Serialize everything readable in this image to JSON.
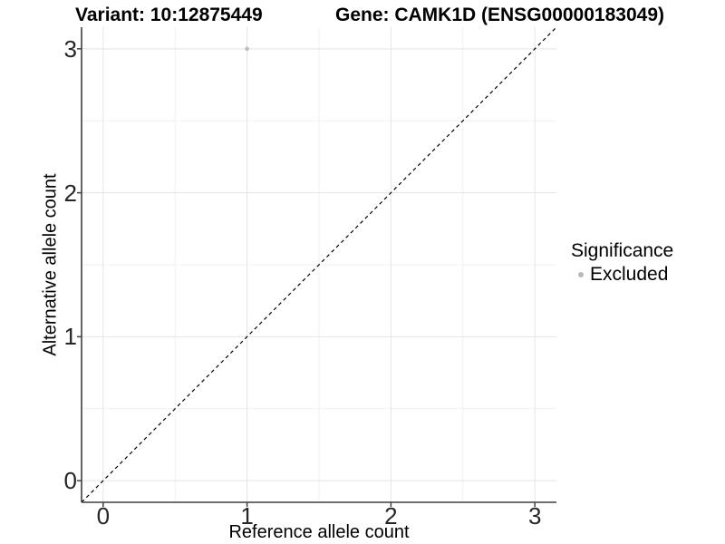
{
  "chart_data": {
    "type": "scatter",
    "title_left": "Variant: 10:12875449",
    "title_right": "Gene: CAMK1D (ENSG00000183049)",
    "xlabel": "Reference allele count",
    "ylabel": "Alternative allele count",
    "xlim": [
      -0.15,
      3.15
    ],
    "ylim": [
      -0.15,
      3.15
    ],
    "x_ticks": [
      0,
      1,
      2,
      3
    ],
    "y_ticks": [
      0,
      1,
      2,
      3
    ],
    "x_minor_ticks": [
      0.5,
      1.5,
      2.5
    ],
    "y_minor_ticks": [
      0.5,
      1.5,
      2.5
    ],
    "grid": true,
    "points": [
      {
        "x": 1,
        "y": 3,
        "series": "Excluded"
      }
    ],
    "reference_line": {
      "type": "identity",
      "slope": 1,
      "intercept": 0,
      "style": "dashed"
    },
    "legend": {
      "title": "Significance",
      "position": "right",
      "items": [
        {
          "label": "Excluded",
          "color": "#bebebe",
          "marker": "circle"
        }
      ]
    }
  },
  "colors": {
    "background": "#ffffff",
    "point": "#bebebe",
    "legend_marker": "#b9b9b9",
    "grid_major": "#e4e4e4",
    "grid_minor": "#f1f1f1",
    "axis_line": "#3f3f3f",
    "tick_mark": "#3f3f3f",
    "tick_label": "#262626",
    "reference_line": "#000000"
  }
}
